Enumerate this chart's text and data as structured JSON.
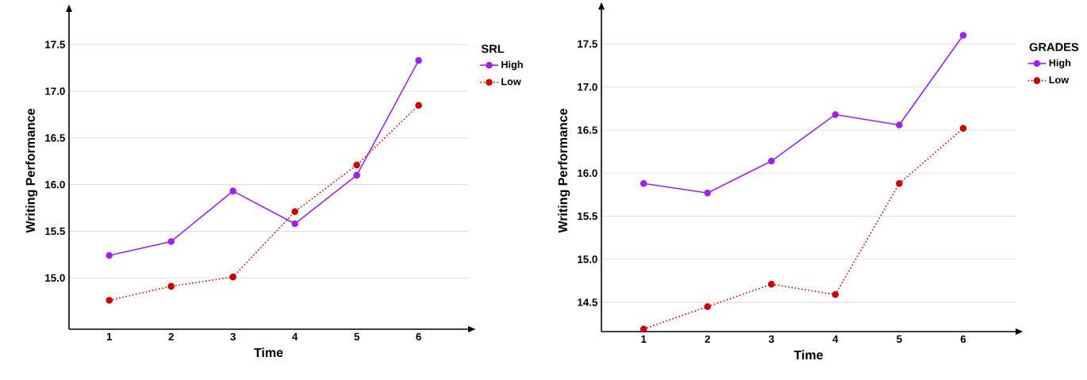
{
  "chart_data": [
    {
      "type": "line",
      "legend_title": "SRL",
      "xlabel": "Time",
      "ylabel": "Writing Performance",
      "x": [
        1,
        2,
        3,
        4,
        5,
        6
      ],
      "xlim": [
        0.35,
        6.8
      ],
      "ylim": [
        14.45,
        17.85
      ],
      "xticks": [
        1,
        2,
        3,
        4,
        5,
        6
      ],
      "yticks": [
        {
          "value": 15,
          "label": "15.0"
        },
        {
          "value": 15.5,
          "label": "15.5"
        },
        {
          "value": 16,
          "label": "16.0"
        },
        {
          "value": 16.5,
          "label": "16.5"
        },
        {
          "value": 17,
          "label": "17.0"
        },
        {
          "value": 17.5,
          "label": "17.5"
        }
      ],
      "grid": "y",
      "legend": "top right",
      "marker": "circle",
      "series": [
        {
          "name": "High",
          "color": "#a020f0",
          "line_style": "solid",
          "values": [
            15.24,
            15.39,
            15.93,
            15.58,
            16.1,
            17.33
          ]
        },
        {
          "name": "Low",
          "color": "#cc0000",
          "line_style": "dotted",
          "values": [
            14.76,
            14.91,
            15.01,
            15.71,
            16.21,
            16.85
          ]
        }
      ]
    },
    {
      "type": "line",
      "legend_title": "GRADES",
      "xlabel": "Time",
      "ylabel": "Writing Performance",
      "x": [
        1,
        2,
        3,
        4,
        5,
        6
      ],
      "xlim": [
        0.34,
        6.82
      ],
      "ylim": [
        14.16,
        17.9
      ],
      "xticks": [
        1,
        2,
        3,
        4,
        5,
        6
      ],
      "yticks": [
        {
          "value": 14.5,
          "label": "14.5"
        },
        {
          "value": 15,
          "label": "15.0"
        },
        {
          "value": 15.5,
          "label": "15.5"
        },
        {
          "value": 16,
          "label": "16.0"
        },
        {
          "value": 16.5,
          "label": "16.5"
        },
        {
          "value": 17,
          "label": "17.0"
        },
        {
          "value": 17.5,
          "label": "17.5"
        }
      ],
      "grid": "y",
      "legend": "top right",
      "marker": "circle",
      "series": [
        {
          "name": "High",
          "color": "#a020f0",
          "line_style": "solid",
          "values": [
            15.88,
            15.77,
            16.14,
            16.68,
            16.56,
            17.6
          ]
        },
        {
          "name": "Low",
          "color": "#cc0000",
          "line_style": "dotted",
          "values": [
            14.19,
            14.45,
            14.71,
            14.59,
            15.88,
            16.52
          ]
        }
      ]
    }
  ]
}
